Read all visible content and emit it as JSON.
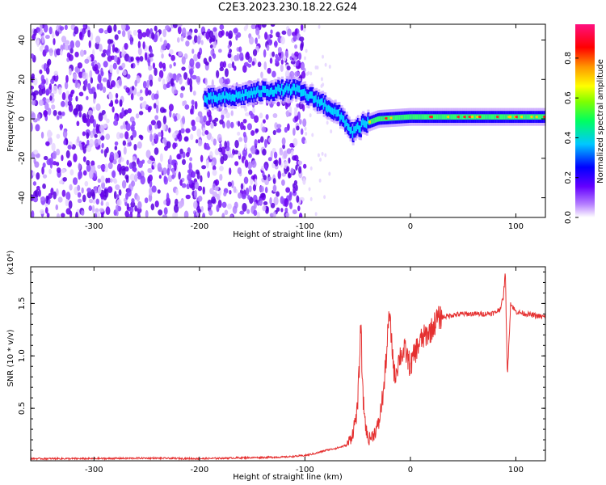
{
  "title": "C2E3.2023.230.18.22.G24",
  "chart_data": [
    {
      "type": "heatmap",
      "xlabel": "Height of straight line (km)",
      "ylabel": "Frequency (Hz)",
      "xlim": [
        -360,
        128
      ],
      "ylim": [
        -50,
        48
      ],
      "xticks": [
        -300,
        -200,
        -100,
        0,
        100
      ],
      "yticks": [
        -40,
        -20,
        0,
        20,
        40
      ],
      "colorbar": {
        "label": "Normalized spectral amplitude",
        "range": [
          0,
          0.97
        ],
        "ticks": [
          "0.0",
          "0.2",
          "0.4",
          "0.6",
          "0.8"
        ]
      },
      "signal_track": [
        {
          "x": -195,
          "y": 10
        },
        {
          "x": -170,
          "y": 11
        },
        {
          "x": -140,
          "y": 14
        },
        {
          "x": -110,
          "y": 15
        },
        {
          "x": -90,
          "y": 10
        },
        {
          "x": -75,
          "y": 5
        },
        {
          "x": -62,
          "y": -1
        },
        {
          "x": -55,
          "y": -7
        },
        {
          "x": -45,
          "y": -3
        },
        {
          "x": -30,
          "y": 0
        },
        {
          "x": 0,
          "y": 1
        },
        {
          "x": 50,
          "y": 1
        },
        {
          "x": 128,
          "y": 1
        }
      ]
    },
    {
      "type": "line",
      "xlabel": "Height of straight line (km)",
      "ylabel": "SNR (10 * v/v)",
      "y_multiplier": "(x10⁴)",
      "xlim": [
        -360,
        128
      ],
      "ylim": [
        0,
        1.85
      ],
      "xticks": [
        -300,
        -200,
        -100,
        0,
        100
      ],
      "yticks": [
        "0.5",
        "1.0",
        "1.5"
      ],
      "color": "#e53030",
      "series": [
        {
          "x": [
            -360,
            -300,
            -250,
            -200,
            -150,
            -120,
            -100,
            -90,
            -80,
            -70,
            -60,
            -55,
            -50,
            -47,
            -45,
            -42,
            -40,
            -35,
            -30,
            -25,
            -20,
            -15,
            -10,
            -5,
            0,
            5,
            10,
            15,
            20,
            25,
            30,
            40,
            50,
            60,
            70,
            80,
            85,
            88,
            90,
            92,
            95,
            100,
            110,
            120,
            128
          ],
          "y": [
            0.02,
            0.02,
            0.025,
            0.02,
            0.03,
            0.035,
            0.05,
            0.07,
            0.1,
            0.12,
            0.15,
            0.25,
            0.5,
            1.3,
            0.6,
            0.3,
            0.2,
            0.25,
            0.35,
            0.7,
            1.4,
            0.8,
            1.0,
            1.05,
            0.9,
            1.05,
            1.15,
            1.2,
            1.25,
            1.35,
            1.37,
            1.39,
            1.4,
            1.4,
            1.4,
            1.41,
            1.45,
            1.55,
            1.8,
            0.8,
            1.5,
            1.42,
            1.4,
            1.38,
            1.37
          ]
        }
      ]
    }
  ]
}
